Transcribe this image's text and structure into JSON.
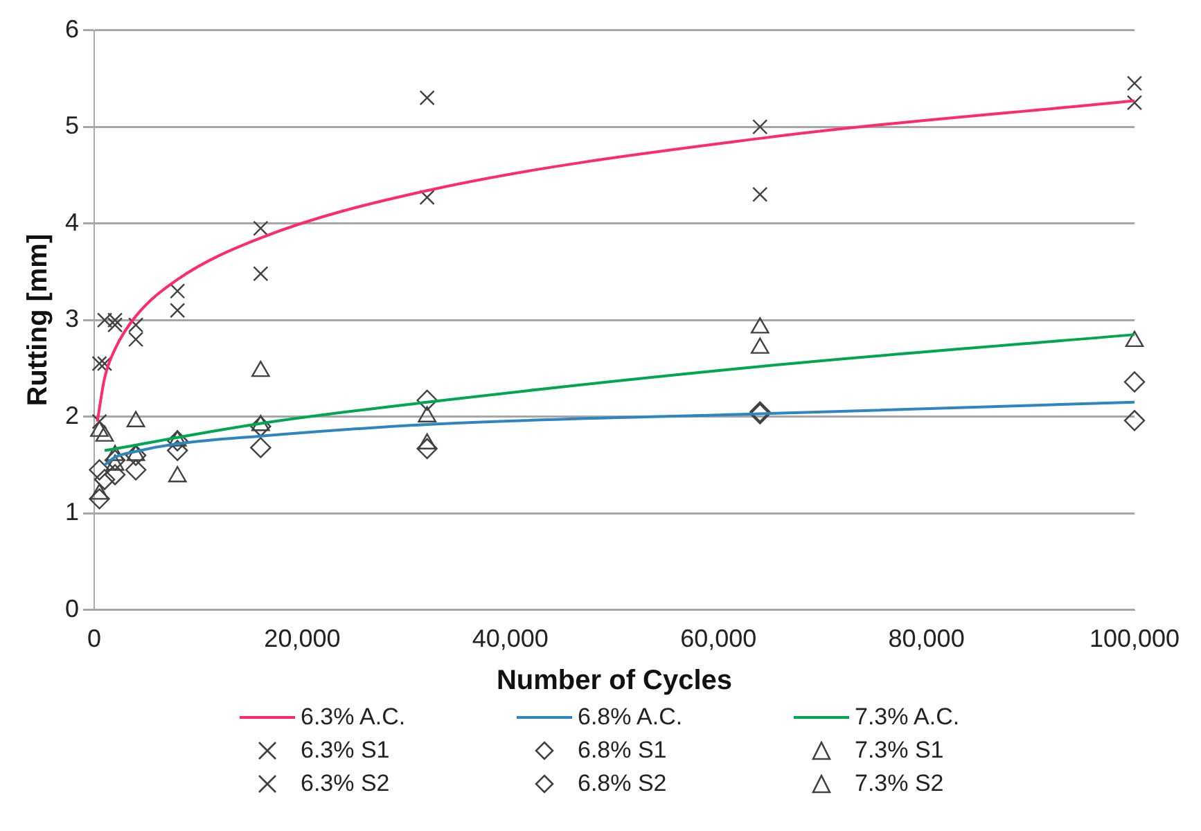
{
  "chart_data": {
    "type": "scatter",
    "xlabel": "Number of Cycles",
    "ylabel": "Rutting [mm]",
    "xlim": [
      0,
      100000
    ],
    "xticks": [
      {
        "value": 0,
        "label": "0"
      },
      {
        "value": 20000,
        "label": "20,000"
      },
      {
        "value": 40000,
        "label": "40,000"
      },
      {
        "value": 60000,
        "label": "60,000"
      },
      {
        "value": 80000,
        "label": "80,000"
      },
      {
        "value": 100000,
        "label": "100,000"
      }
    ],
    "ylim": [
      0,
      6
    ],
    "yticks": [
      0,
      1,
      2,
      3,
      4,
      5,
      6
    ],
    "grid": "y",
    "legend": "bottom",
    "series": [
      {
        "name": "6.3% A.C.",
        "type": "line",
        "marker": "none",
        "color": "#ff2a68",
        "x": [
          300,
          1000,
          2000,
          4000,
          8000,
          16000,
          32000,
          64000,
          100000
        ],
        "values": [
          1.95,
          2.4,
          2.7,
          3.04,
          3.42,
          3.85,
          4.34,
          4.88,
          5.27
        ]
      },
      {
        "name": "6.8% A.C.",
        "type": "line",
        "marker": "none",
        "color": "#2e86c1",
        "x": [
          1000,
          2000,
          4000,
          8000,
          16000,
          32000,
          64000,
          100000
        ],
        "values": [
          1.5,
          1.58,
          1.64,
          1.72,
          1.8,
          1.92,
          2.03,
          2.15
        ]
      },
      {
        "name": "7.3% A.C.",
        "type": "line",
        "marker": "none",
        "color": "#00a650",
        "x": [
          1000,
          16000,
          32000,
          64000,
          100000
        ],
        "values": [
          1.65,
          1.93,
          2.15,
          2.52,
          2.85
        ]
      },
      {
        "name": "6.3% S1",
        "type": "scatter",
        "marker": "cross",
        "color": "#404040",
        "x": [
          500,
          1000,
          2000,
          4000,
          8000,
          16000,
          32000,
          64000,
          100000
        ],
        "values": [
          2.55,
          3.0,
          3.0,
          2.95,
          3.3,
          3.95,
          5.3,
          5.0,
          5.45
        ]
      },
      {
        "name": "6.8% S1",
        "type": "scatter",
        "marker": "diamond",
        "color": "#404040",
        "x": [
          500,
          1000,
          2000,
          4000,
          8000,
          16000,
          32000,
          64000,
          100000
        ],
        "values": [
          1.45,
          null,
          1.55,
          1.6,
          1.75,
          1.9,
          2.17,
          2.05,
          2.36
        ]
      },
      {
        "name": "7.3% S1",
        "type": "scatter",
        "marker": "triangle",
        "color": "#404040",
        "x": [
          500,
          1000,
          2000,
          4000,
          8000,
          16000,
          32000,
          64000,
          100000
        ],
        "values": [
          1.85,
          1.8,
          1.6,
          1.95,
          1.75,
          2.47,
          2.0,
          2.92,
          2.78
        ]
      },
      {
        "name": "6.3% S2",
        "type": "scatter",
        "marker": "cross",
        "color": "#404040",
        "x": [
          500,
          1000,
          2000,
          4000,
          8000,
          16000,
          32000,
          64000,
          100000
        ],
        "values": [
          1.95,
          2.55,
          2.95,
          2.8,
          3.1,
          3.48,
          4.27,
          4.3,
          5.25
        ]
      },
      {
        "name": "6.8% S2",
        "type": "scatter",
        "marker": "diamond",
        "color": "#404040",
        "x": [
          500,
          1000,
          2000,
          4000,
          8000,
          16000,
          32000,
          64000,
          100000
        ],
        "values": [
          1.15,
          1.35,
          1.4,
          1.45,
          1.65,
          1.68,
          1.67,
          2.03,
          1.96
        ]
      },
      {
        "name": "7.3% S2",
        "type": "scatter",
        "marker": "triangle",
        "color": "#404040",
        "x": [
          500,
          1000,
          2000,
          4000,
          8000,
          16000,
          32000,
          64000
        ],
        "values": [
          1.2,
          null,
          1.5,
          1.6,
          1.38,
          1.91,
          1.72,
          2.71
        ]
      }
    ]
  }
}
